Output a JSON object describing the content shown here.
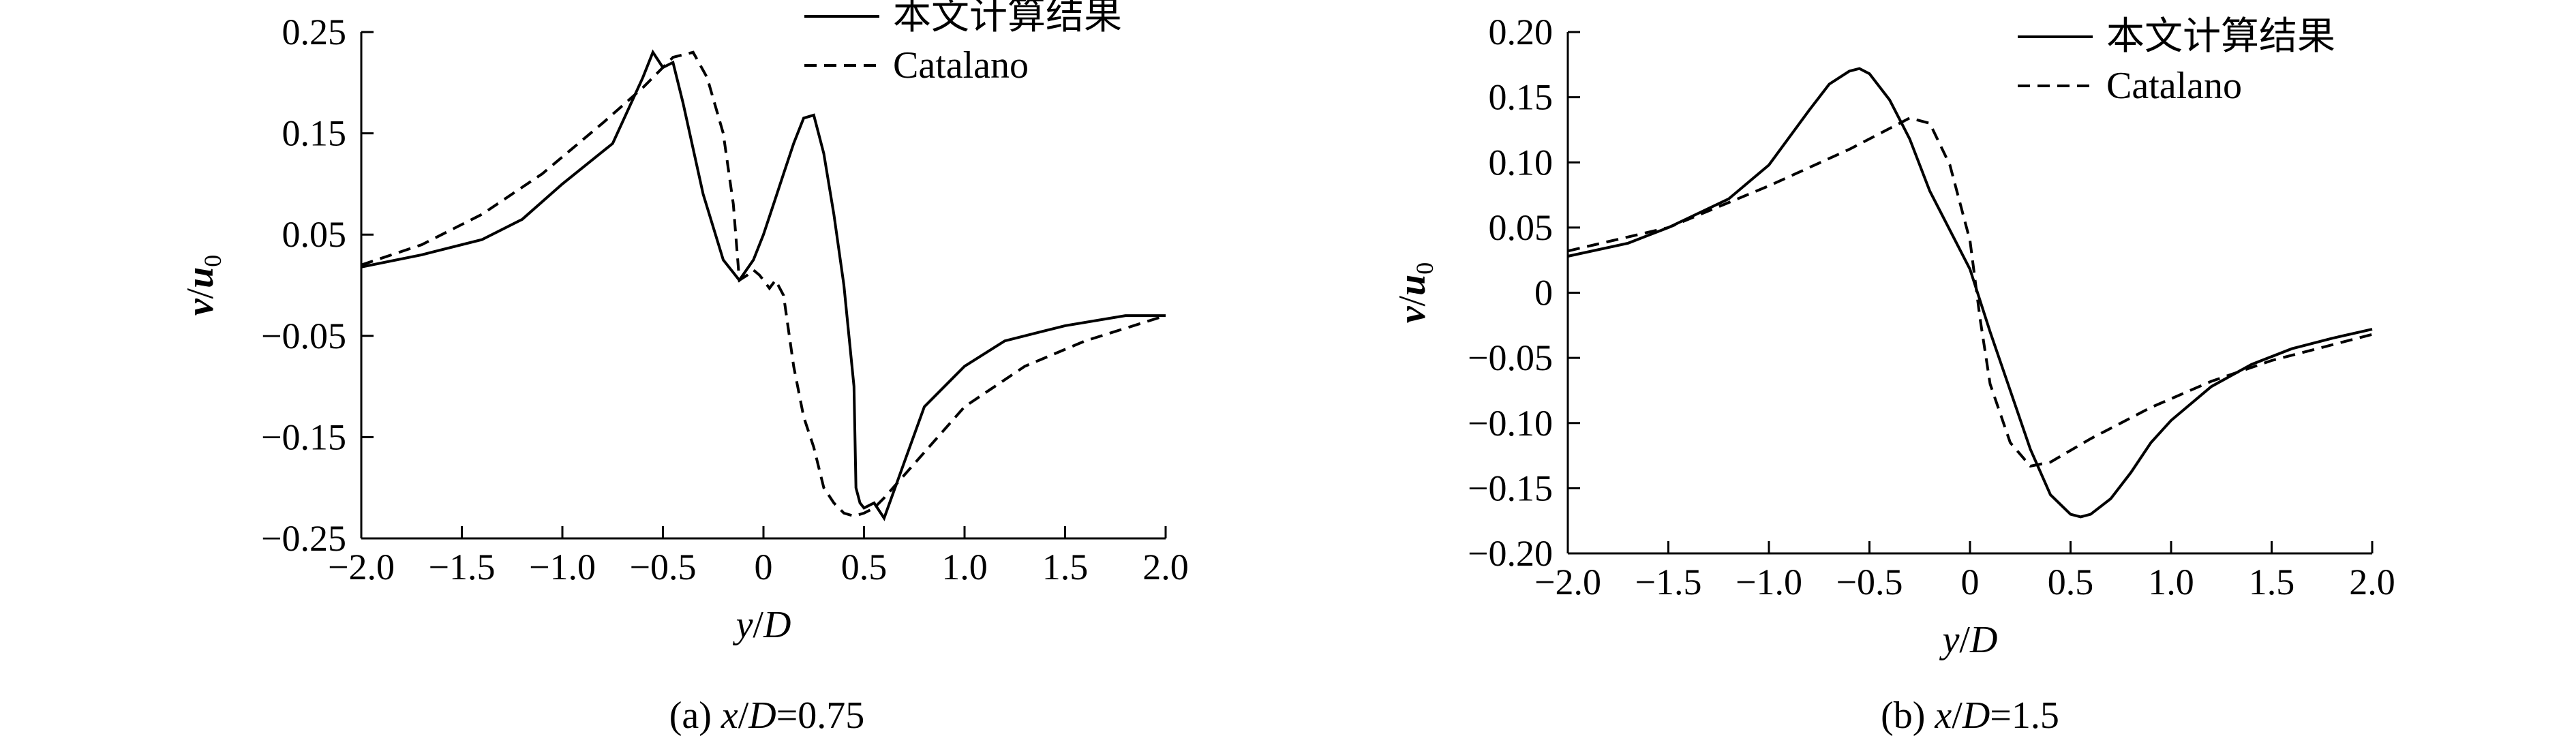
{
  "chart_data": [
    {
      "type": "line",
      "caption_prefix": "(a) ",
      "caption_var": "x/D",
      "caption_value": "=0.75",
      "xlabel": "y/D",
      "ylabel": "v/u0",
      "xlim": [
        -2.0,
        2.0
      ],
      "ylim": [
        -0.25,
        0.25
      ],
      "x_ticks": [
        "-2.0",
        "-1.5",
        "-1.0",
        "-0.5",
        "0",
        "0.5",
        "1.0",
        "1.5",
        "2.0"
      ],
      "y_ticks": [
        "0.25",
        "0.15",
        "0.05",
        "-0.05",
        "-0.15",
        "-0.25"
      ],
      "legend": [
        "本文计算结果",
        "Catalano"
      ],
      "series": [
        {
          "name": "本文计算结果",
          "style": "solid",
          "x": [
            -2.0,
            -1.7,
            -1.4,
            -1.2,
            -1.0,
            -0.75,
            -0.6,
            -0.55,
            -0.5,
            -0.45,
            -0.4,
            -0.3,
            -0.2,
            -0.12,
            -0.05,
            0.0,
            0.05,
            0.1,
            0.15,
            0.2,
            0.25,
            0.3,
            0.35,
            0.4,
            0.45,
            0.46,
            0.48,
            0.5,
            0.55,
            0.6,
            0.7,
            0.8,
            1.0,
            1.2,
            1.5,
            1.8,
            2.0
          ],
          "y": [
            0.018,
            0.03,
            0.045,
            0.065,
            0.1,
            0.14,
            0.205,
            0.23,
            0.215,
            0.22,
            0.18,
            0.09,
            0.025,
            0.005,
            0.025,
            0.05,
            0.08,
            0.11,
            0.14,
            0.165,
            0.168,
            0.13,
            0.07,
            0.0,
            -0.1,
            -0.2,
            -0.215,
            -0.22,
            -0.215,
            -0.23,
            -0.175,
            -0.12,
            -0.08,
            -0.055,
            -0.04,
            -0.03,
            -0.03
          ]
        },
        {
          "name": "Catalano",
          "style": "dashed",
          "x": [
            -2.0,
            -1.7,
            -1.4,
            -1.1,
            -0.8,
            -0.6,
            -0.45,
            -0.35,
            -0.28,
            -0.2,
            -0.15,
            -0.12,
            -0.08,
            -0.05,
            -0.02,
            0.0,
            0.03,
            0.06,
            0.1,
            0.15,
            0.2,
            0.25,
            0.3,
            0.35,
            0.4,
            0.45,
            0.5,
            0.55,
            0.6,
            0.8,
            1.0,
            1.3,
            1.6,
            2.0
          ],
          "y": [
            0.02,
            0.04,
            0.07,
            0.11,
            0.16,
            0.195,
            0.225,
            0.23,
            0.205,
            0.15,
            0.08,
            0.005,
            0.01,
            0.015,
            0.01,
            0.005,
            -0.003,
            0.005,
            -0.01,
            -0.08,
            -0.13,
            -0.16,
            -0.2,
            -0.215,
            -0.225,
            -0.228,
            -0.225,
            -0.22,
            -0.21,
            -0.165,
            -0.12,
            -0.08,
            -0.055,
            -0.03
          ]
        }
      ]
    },
    {
      "type": "line",
      "caption_prefix": "(b) ",
      "caption_var": "x/D",
      "caption_value": "=1.5",
      "xlabel": "y/D",
      "ylabel": "v/u0",
      "xlim": [
        -2.0,
        2.0
      ],
      "ylim": [
        -0.2,
        0.2
      ],
      "x_ticks": [
        "-2.0",
        "-1.5",
        "-1.0",
        "-0.5",
        "0",
        "0.5",
        "1.0",
        "1.5",
        "2.0"
      ],
      "y_ticks": [
        "0.20",
        "0.15",
        "0.10",
        "0.05",
        "0",
        "-0.05",
        "-0.10",
        "-0.15",
        "-0.20"
      ],
      "legend": [
        "本文计算结果",
        "Catalano"
      ],
      "series": [
        {
          "name": "本文计算结果",
          "style": "solid",
          "x": [
            -2.0,
            -1.7,
            -1.5,
            -1.2,
            -1.0,
            -0.8,
            -0.7,
            -0.6,
            -0.55,
            -0.5,
            -0.4,
            -0.3,
            -0.2,
            -0.1,
            0.0,
            0.1,
            0.2,
            0.3,
            0.4,
            0.5,
            0.55,
            0.6,
            0.7,
            0.8,
            0.9,
            1.0,
            1.2,
            1.4,
            1.6,
            1.8,
            2.0
          ],
          "y": [
            0.028,
            0.038,
            0.05,
            0.072,
            0.098,
            0.14,
            0.16,
            0.17,
            0.172,
            0.168,
            0.148,
            0.118,
            0.078,
            0.048,
            0.018,
            -0.03,
            -0.075,
            -0.12,
            -0.155,
            -0.17,
            -0.172,
            -0.17,
            -0.158,
            -0.138,
            -0.115,
            -0.098,
            -0.072,
            -0.055,
            -0.043,
            -0.035,
            -0.028
          ]
        },
        {
          "name": "Catalano",
          "style": "dashed",
          "x": [
            -2.0,
            -1.5,
            -1.0,
            -0.6,
            -0.4,
            -0.3,
            -0.2,
            -0.1,
            0.0,
            0.05,
            0.1,
            0.2,
            0.3,
            0.4,
            0.6,
            0.9,
            1.2,
            1.5,
            1.8,
            2.0
          ],
          "y": [
            0.032,
            0.05,
            0.082,
            0.11,
            0.126,
            0.134,
            0.13,
            0.098,
            0.04,
            -0.02,
            -0.07,
            -0.115,
            -0.133,
            -0.13,
            -0.112,
            -0.088,
            -0.068,
            -0.052,
            -0.04,
            -0.032
          ]
        }
      ]
    }
  ]
}
